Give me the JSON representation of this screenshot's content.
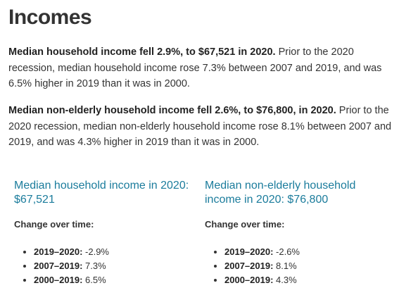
{
  "header": {
    "title": "Incomes"
  },
  "paragraphs": [
    {
      "lead": "Median household income fell 2.9%, to $67,521 in 2020.",
      "text": "Prior to the 2020 recession, median household income rose 7.3% between 2007 and 2019, and was 6.5% higher in 2019 than it was in 2000."
    },
    {
      "lead": "Median non-elderly household income fell 2.6%, to $76,800, in 2020.",
      "text": "Prior to the 2020 recession, median non-elderly household income rose 8.1% between 2007 and 2019, and was 4.3% higher in 2019 than it was in 2000."
    }
  ],
  "cards": [
    {
      "title": "Median household income in 2020: $67,521",
      "subtitle": "Change over time:",
      "items": [
        {
          "label": "2019–2020:",
          "value": "-2.9%"
        },
        {
          "label": "2007–2019:",
          "value": "7.3%"
        },
        {
          "label": "2000–2019:",
          "value": "6.5%"
        }
      ]
    },
    {
      "title": "Median non-elderly household income in 2020: $76,800",
      "subtitle": "Change over time:",
      "items": [
        {
          "label": "2019–2020:",
          "value": "-2.6%"
        },
        {
          "label": "2007–2019:",
          "value": "8.1%"
        },
        {
          "label": "2000–2019:",
          "value": "4.3%"
        }
      ]
    }
  ]
}
